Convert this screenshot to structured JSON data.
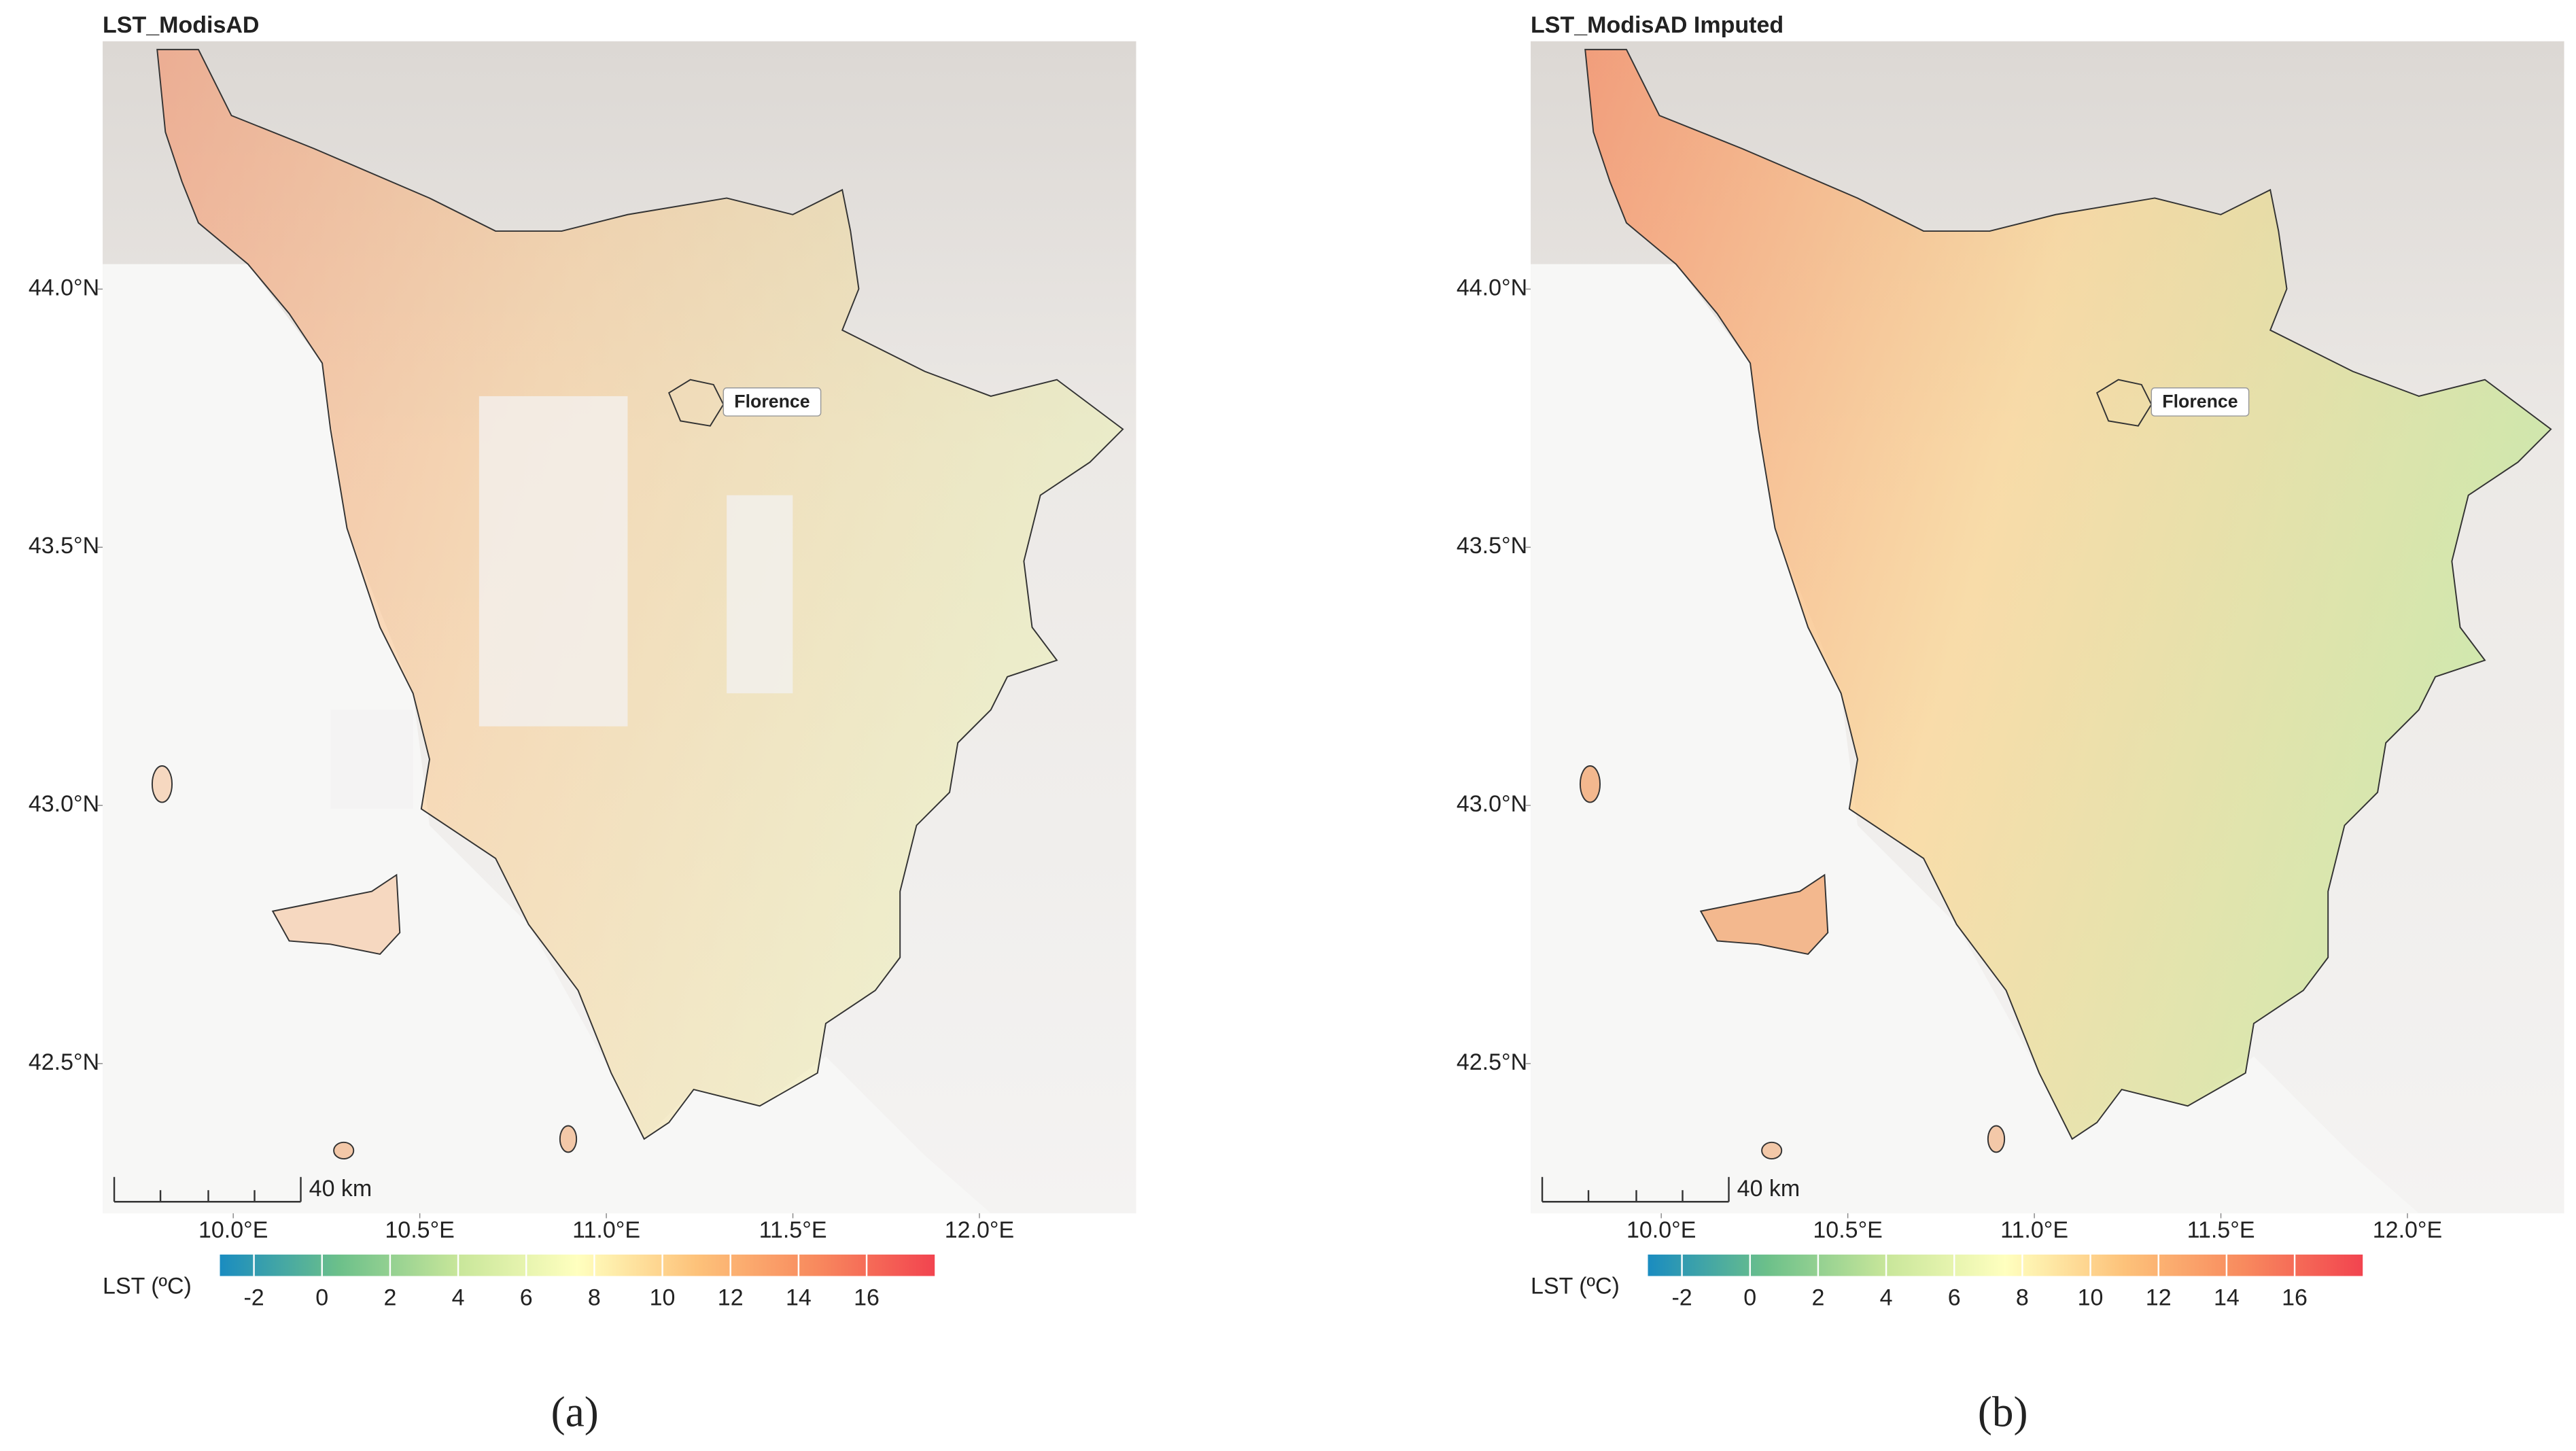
{
  "panels": [
    {
      "title": "LST_ModisAD",
      "label": "(a)",
      "city": "Florence",
      "scale_label": "40 km",
      "xlim": [
        9.65,
        12.42
      ],
      "ylim": [
        42.21,
        44.48
      ],
      "lon_ticks": [
        {
          "value": 10,
          "label": "10.0°E"
        },
        {
          "value": 10.5,
          "label": "10.5°E"
        },
        {
          "value": 11,
          "label": "11.0°E"
        },
        {
          "value": 11.5,
          "label": "11.5°E"
        },
        {
          "value": 12,
          "label": "12.0°E"
        }
      ],
      "lat_ticks": [
        {
          "value": 44,
          "label": "44.0°N"
        },
        {
          "value": 43.5,
          "label": "43.5°N"
        },
        {
          "value": 43,
          "label": "43.0°N"
        },
        {
          "value": 42.5,
          "label": "42.5°N"
        }
      ],
      "colorbar": {
        "title": "LST (ºC)",
        "lim": [
          -3,
          18
        ],
        "ticks": [
          -2,
          0,
          2,
          4,
          6,
          8,
          10,
          12,
          14,
          16
        ],
        "colors": [
          "#1a8cc0",
          "#6cc08a",
          "#c8e69a",
          "#ffffbf",
          "#fdc27a",
          "#f88a5e",
          "#f2444f"
        ]
      }
    },
    {
      "title": "LST_ModisAD Imputed",
      "label": "(b)",
      "city": "Florence",
      "scale_label": "40 km",
      "xlim": [
        9.65,
        12.42
      ],
      "ylim": [
        42.21,
        44.48
      ],
      "lon_ticks": [
        {
          "value": 10,
          "label": "10.0°E"
        },
        {
          "value": 10.5,
          "label": "10.5°E"
        },
        {
          "value": 11,
          "label": "11.0°E"
        },
        {
          "value": 11.5,
          "label": "11.5°E"
        },
        {
          "value": 12,
          "label": "12.0°E"
        }
      ],
      "lat_ticks": [
        {
          "value": 44,
          "label": "44.0°N"
        },
        {
          "value": 43.5,
          "label": "43.5°N"
        },
        {
          "value": 43,
          "label": "43.0°N"
        },
        {
          "value": 42.5,
          "label": "42.5°N"
        }
      ],
      "colorbar": {
        "title": "LST (ºC)",
        "lim": [
          -3,
          18
        ],
        "ticks": [
          -2,
          0,
          2,
          4,
          6,
          8,
          10,
          12,
          14,
          16
        ],
        "colors": [
          "#1a8cc0",
          "#6cc08a",
          "#c8e69a",
          "#ffffbf",
          "#fdc27a",
          "#f88a5e",
          "#f2444f"
        ]
      }
    }
  ]
}
